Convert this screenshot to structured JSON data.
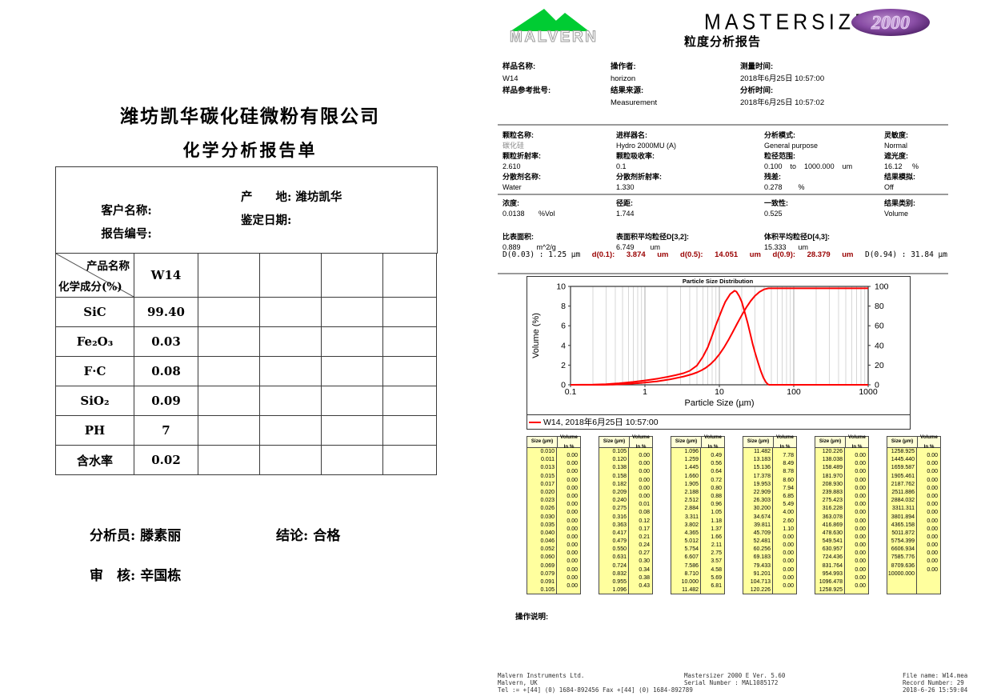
{
  "left_report": {
    "company": "潍坊凯华碳化硅微粉有限公司",
    "title": "化学分析报告单",
    "info": {
      "customer_label": "客户名称:",
      "origin_label": "产　　地:",
      "origin_value": "潍坊凯华",
      "report_no_label": "报告编号:",
      "date_label": "鉴定日期:"
    },
    "chem_table": {
      "header_top": "产品名称",
      "header_bottom": "化学成分(%)",
      "product": "W14",
      "extra_columns": 4,
      "rows": [
        {
          "component": "SiC",
          "value": "99.40"
        },
        {
          "component": "Fe₂O₃",
          "value": "0.03"
        },
        {
          "component": "F·C",
          "value": "0.08"
        },
        {
          "component": "SiO₂",
          "value": "0.09"
        },
        {
          "component": "PH",
          "value": "7"
        },
        {
          "component": "含水率",
          "value": "0.02"
        }
      ]
    },
    "signatures": {
      "analyst_label": "分析员: ",
      "analyst": "滕素丽",
      "conclusion_label": "结论: ",
      "conclusion": "合格",
      "reviewer_label": "审　核: ",
      "reviewer": "辛国栋"
    }
  },
  "right_report": {
    "brand": {
      "logo_text": "MALVERN",
      "product": "MASTERSIZER",
      "badge": "2000",
      "subtitle": "粒度分析报告",
      "green": "#00CC33",
      "purple": "#6a2d82"
    },
    "sections": [
      {
        "columns": [
          [
            {
              "l": "样品名称:",
              "v": "W14"
            },
            {
              "l": "样品参考批号:",
              "v": ""
            }
          ],
          [
            {
              "l": "操作者:",
              "v": "horizon"
            },
            {
              "l": "结果来源:",
              "v": "Measurement"
            }
          ],
          [
            {
              "l": "测量时间:",
              "v": "2018年6月25日 10:57:00"
            },
            {
              "l": "分析时间:",
              "v": "2018年6月25日 10:57:02"
            }
          ]
        ]
      },
      {
        "columns": [
          [
            {
              "l": "颗粒名称:",
              "v": "碳化硅",
              "muted": true
            },
            {
              "l": "颗粒折射率:",
              "v": "2.610"
            },
            {
              "l": "分散剂名称:",
              "v": "Water"
            }
          ],
          [
            {
              "l": "进样器名:",
              "v": "Hydro 2000MU (A)"
            },
            {
              "l": "颗粒吸收率:",
              "v": "0.1"
            },
            {
              "l": "分散剂折射率:",
              "v": "1.330"
            }
          ],
          [
            {
              "l": "分析模式:",
              "v": "General purpose"
            },
            {
              "l": "粒径范围:",
              "v": "0.100    to    1000.000    um"
            },
            {
              "l": "残差:",
              "v": "0.278        %"
            }
          ],
          [
            {
              "l": "灵敏度:",
              "v": "Normal"
            },
            {
              "l": "遮光度:",
              "v": "16.12     %"
            },
            {
              "l": "结果模拟:",
              "v": "Off"
            }
          ]
        ]
      },
      {
        "columns": [
          [
            {
              "l": "浓度:",
              "v": "0.0138       %Vol"
            },
            {
              "l": "比表面积:",
              "v": "0.889        m^2/g"
            }
          ],
          [
            {
              "l": "径距:",
              "v": "1.744"
            },
            {
              "l": "表面积平均粒径D[3,2]:",
              "v": "6.749        um"
            }
          ],
          [
            {
              "l": "一致性:",
              "v": "0.525"
            },
            {
              "l": "体积平均粒径D[4,3]:",
              "v": "15.333      um"
            }
          ],
          [
            {
              "l": "结果类别:",
              "v": "Volume"
            }
          ]
        ]
      }
    ],
    "d_values": {
      "prefix": "D(0.03) : 1.25 μm",
      "items": [
        {
          "label": "d(0.1):",
          "value": "3.874",
          "unit": "um"
        },
        {
          "label": "d(0.5):",
          "value": "14.051",
          "unit": "um"
        },
        {
          "label": "d(0.9):",
          "value": "28.379",
          "unit": "um"
        }
      ],
      "suffix": "D(0.94) : 31.84 μm"
    },
    "size_tables": {
      "headers": [
        "Size (µm)",
        "Volume In %"
      ],
      "tables": [
        {
          "sizes": [
            "0.010",
            "0.011",
            "0.013",
            "0.015",
            "0.017",
            "0.020",
            "0.023",
            "0.026",
            "0.030",
            "0.035",
            "0.040",
            "0.046",
            "0.052",
            "0.060",
            "0.069",
            "0.079",
            "0.091",
            "0.105"
          ],
          "volumes": [
            "0.00",
            "0.00",
            "0.00",
            "0.00",
            "0.00",
            "0.00",
            "0.00",
            "0.00",
            "0.00",
            "0.00",
            "0.00",
            "0.00",
            "0.00",
            "0.00",
            "0.00",
            "0.00",
            "0.00"
          ]
        },
        {
          "sizes": [
            "0.105",
            "0.120",
            "0.138",
            "0.158",
            "0.182",
            "0.209",
            "0.240",
            "0.275",
            "0.316",
            "0.363",
            "0.417",
            "0.479",
            "0.550",
            "0.631",
            "0.724",
            "0.832",
            "0.955",
            "1.096"
          ],
          "volumes": [
            "0.00",
            "0.00",
            "0.00",
            "0.00",
            "0.00",
            "0.00",
            "0.01",
            "0.08",
            "0.12",
            "0.17",
            "0.21",
            "0.24",
            "0.27",
            "0.30",
            "0.34",
            "0.38",
            "0.43"
          ]
        },
        {
          "sizes": [
            "1.096",
            "1.259",
            "1.445",
            "1.660",
            "1.905",
            "2.188",
            "2.512",
            "2.884",
            "3.311",
            "3.802",
            "4.365",
            "5.012",
            "5.754",
            "6.607",
            "7.586",
            "8.710",
            "10.000",
            "11.482"
          ],
          "volumes": [
            "0.49",
            "0.56",
            "0.64",
            "0.72",
            "0.80",
            "0.88",
            "0.96",
            "1.05",
            "1.18",
            "1.37",
            "1.66",
            "2.11",
            "2.75",
            "3.57",
            "4.58",
            "5.69",
            "6.81"
          ]
        },
        {
          "sizes": [
            "11.482",
            "13.183",
            "15.136",
            "17.378",
            "19.953",
            "22.909",
            "26.303",
            "30.200",
            "34.674",
            "39.811",
            "45.709",
            "52.481",
            "60.256",
            "69.183",
            "79.433",
            "91.201",
            "104.713",
            "120.226"
          ],
          "volumes": [
            "7.78",
            "8.49",
            "8.78",
            "8.60",
            "7.94",
            "6.85",
            "5.49",
            "4.00",
            "2.60",
            "1.10",
            "0.00",
            "0.00",
            "0.00",
            "0.00",
            "0.00",
            "0.00",
            "0.00"
          ]
        },
        {
          "sizes": [
            "120.226",
            "138.038",
            "158.489",
            "181.970",
            "208.930",
            "239.883",
            "275.423",
            "316.228",
            "363.078",
            "416.869",
            "478.630",
            "549.541",
            "630.957",
            "724.436",
            "831.764",
            "954.993",
            "1096.478",
            "1258.925"
          ],
          "volumes": [
            "0.00",
            "0.00",
            "0.00",
            "0.00",
            "0.00",
            "0.00",
            "0.00",
            "0.00",
            "0.00",
            "0.00",
            "0.00",
            "0.00",
            "0.00",
            "0.00",
            "0.00",
            "0.00",
            "0.00"
          ]
        },
        {
          "sizes": [
            "1258.925",
            "1445.440",
            "1659.587",
            "1905.461",
            "2187.762",
            "2511.886",
            "2884.032",
            "3311.311",
            "3801.894",
            "4365.158",
            "5011.872",
            "5754.399",
            "6606.934",
            "7585.776",
            "8709.636",
            "10000.000"
          ],
          "volumes": [
            "0.00",
            "0.00",
            "0.00",
            "0.00",
            "0.00",
            "0.00",
            "0.00",
            "0.00",
            "0.00",
            "0.00",
            "0.00",
            "0.00",
            "0.00",
            "0.00",
            "0.00"
          ]
        }
      ]
    },
    "operation_note_label": "操作说明:",
    "footer": {
      "left": [
        "Malvern Instruments Ltd.",
        "Malvern, UK",
        "Tel := +[44] (0) 1684-892456 Fax +[44] (0) 1684-892789"
      ],
      "center": [
        "Mastersizer 2000 E Ver. 5.60",
        "Serial Number : MAL1085172"
      ],
      "right": [
        "File name: W14.mea",
        "Record Number: 29",
        "2018-6-26 15:59:04"
      ]
    }
  },
  "chart_data": {
    "type": "line",
    "title": "Particle Size Distribution",
    "xlabel": "Particle Size (µm)",
    "ylabel": "Volume (%)",
    "x_scale": "log",
    "xlim": [
      0.1,
      1000
    ],
    "ylim_left": [
      0,
      10
    ],
    "ylim_right": [
      0,
      100
    ],
    "x_ticks": [
      "0.1",
      "1",
      "10",
      "100",
      "1000"
    ],
    "left_ticks": [
      0,
      2,
      4,
      6,
      8,
      10
    ],
    "right_ticks": [
      0,
      20,
      40,
      60,
      80,
      100
    ],
    "grid": "vertical-log",
    "legend": "W14, 2018年6月25日 10:57:00",
    "legend_position": "bottom",
    "line_color": "#FF0000",
    "series": [
      {
        "name": "frequency",
        "axis": "left",
        "points": [
          [
            0.1,
            0
          ],
          [
            0.2,
            0.02
          ],
          [
            0.3,
            0.07
          ],
          [
            0.45,
            0.16
          ],
          [
            0.7,
            0.3
          ],
          [
            1,
            0.45
          ],
          [
            1.5,
            0.65
          ],
          [
            2,
            0.82
          ],
          [
            2.6,
            1.0
          ],
          [
            3.3,
            1.2
          ],
          [
            4,
            1.45
          ],
          [
            5,
            2.0
          ],
          [
            6,
            2.9
          ],
          [
            7,
            3.9
          ],
          [
            8,
            5.1
          ],
          [
            9,
            6.2
          ],
          [
            10,
            7.1
          ],
          [
            11,
            7.9
          ],
          [
            12,
            8.6
          ],
          [
            14,
            9.4
          ],
          [
            16,
            9.75
          ],
          [
            17,
            9.65
          ],
          [
            18.5,
            9.2
          ],
          [
            20,
            8.6
          ],
          [
            22,
            7.5
          ],
          [
            24,
            6.4
          ],
          [
            26,
            5.3
          ],
          [
            28,
            4.25
          ],
          [
            30,
            3.4
          ],
          [
            33,
            2.35
          ],
          [
            36,
            1.45
          ],
          [
            39,
            0.75
          ],
          [
            42,
            0.3
          ],
          [
            45,
            0.05
          ],
          [
            47,
            0
          ],
          [
            100,
            0
          ],
          [
            1000,
            0
          ]
        ]
      },
      {
        "name": "cumulative",
        "axis": "right",
        "points": [
          [
            0.1,
            0
          ],
          [
            0.24,
            0
          ],
          [
            0.275,
            0.01
          ],
          [
            0.316,
            0.09
          ],
          [
            0.363,
            0.21
          ],
          [
            0.417,
            0.38
          ],
          [
            0.479,
            0.59
          ],
          [
            0.55,
            0.83
          ],
          [
            0.631,
            1.1
          ],
          [
            0.724,
            1.4
          ],
          [
            0.832,
            1.74
          ],
          [
            0.955,
            2.12
          ],
          [
            1.096,
            2.55
          ],
          [
            1.259,
            3.04
          ],
          [
            1.445,
            3.6
          ],
          [
            1.66,
            4.24
          ],
          [
            1.905,
            4.96
          ],
          [
            2.188,
            5.76
          ],
          [
            2.512,
            6.64
          ],
          [
            2.884,
            7.6
          ],
          [
            3.311,
            8.65
          ],
          [
            3.802,
            9.83
          ],
          [
            4.365,
            11.2
          ],
          [
            5.012,
            12.86
          ],
          [
            5.754,
            14.97
          ],
          [
            6.607,
            17.72
          ],
          [
            7.586,
            21.29
          ],
          [
            8.71,
            25.87
          ],
          [
            10,
            31.56
          ],
          [
            11.482,
            38.37
          ],
          [
            13.183,
            46.15
          ],
          [
            15.136,
            54.64
          ],
          [
            17.378,
            63.42
          ],
          [
            19.953,
            72.02
          ],
          [
            22.909,
            79.96
          ],
          [
            26.303,
            86.81
          ],
          [
            30.2,
            92.3
          ],
          [
            34.674,
            96.3
          ],
          [
            39.811,
            98.9
          ],
          [
            45.709,
            100
          ],
          [
            100,
            100
          ],
          [
            1000,
            100
          ]
        ]
      }
    ]
  }
}
